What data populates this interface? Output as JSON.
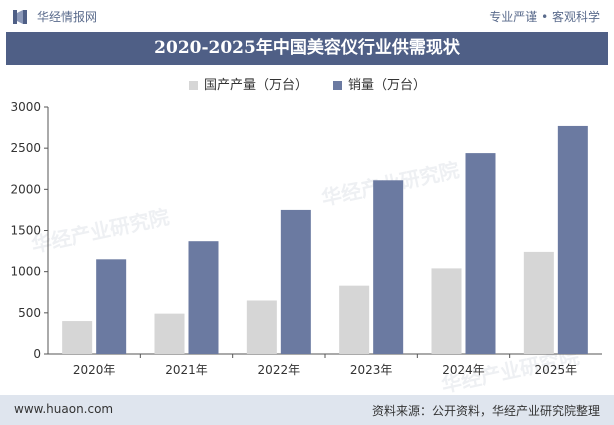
{
  "header": {
    "brand": "华经情报网",
    "tagline": "专业严谨 • 客观科学"
  },
  "title": "2020-2025年中国美容仪行业供需现状",
  "colors": {
    "production": "#d6d6d6",
    "sales": "#6b7aa1",
    "title_bg": "#4f5f86",
    "footer_bg": "#dfe5ee"
  },
  "chart_data": {
    "type": "bar",
    "categories": [
      "2020年",
      "2021年",
      "2022年",
      "2023年",
      "2024年",
      "2025年"
    ],
    "series": [
      {
        "name": "国产产量（万台）",
        "values": [
          400,
          490,
          650,
          830,
          1040,
          1240
        ]
      },
      {
        "name": "销量（万台）",
        "values": [
          1150,
          1370,
          1750,
          2110,
          2440,
          2770
        ]
      }
    ],
    "ylim": [
      0,
      3000
    ],
    "yticks": [
      0,
      500,
      1000,
      1500,
      2000,
      2500,
      3000
    ],
    "grid": false,
    "legend": "top-center"
  },
  "watermark": "华经产业研究院",
  "footer": {
    "url": "www.huaon.com",
    "source": "资料来源：公开资料，华经产业研究院整理"
  }
}
